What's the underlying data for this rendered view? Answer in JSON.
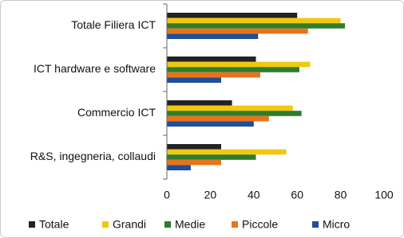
{
  "chart_data": {
    "type": "hbar",
    "categories": [
      "Totale Filiera ICT",
      "ICT hardware e software",
      "Commercio ICT",
      "R&S, ingegneria, collaudi"
    ],
    "series": [
      {
        "name": "Totale",
        "color": "#222222",
        "values": [
          60,
          41,
          30,
          25
        ]
      },
      {
        "name": "Grandi",
        "color": "#f2c80f",
        "values": [
          80,
          66,
          58,
          55
        ]
      },
      {
        "name": "Medie",
        "color": "#2d7d2d",
        "values": [
          82,
          61,
          62,
          41
        ]
      },
      {
        "name": "Piccole",
        "color": "#e8731c",
        "values": [
          65,
          43,
          47,
          25
        ]
      },
      {
        "name": "Micro",
        "color": "#1f4e9a",
        "values": [
          42,
          25,
          40,
          11
        ]
      }
    ],
    "xlim": [
      0,
      100
    ],
    "xticks": [
      0,
      20,
      40,
      60,
      80,
      100
    ],
    "grid": false
  }
}
